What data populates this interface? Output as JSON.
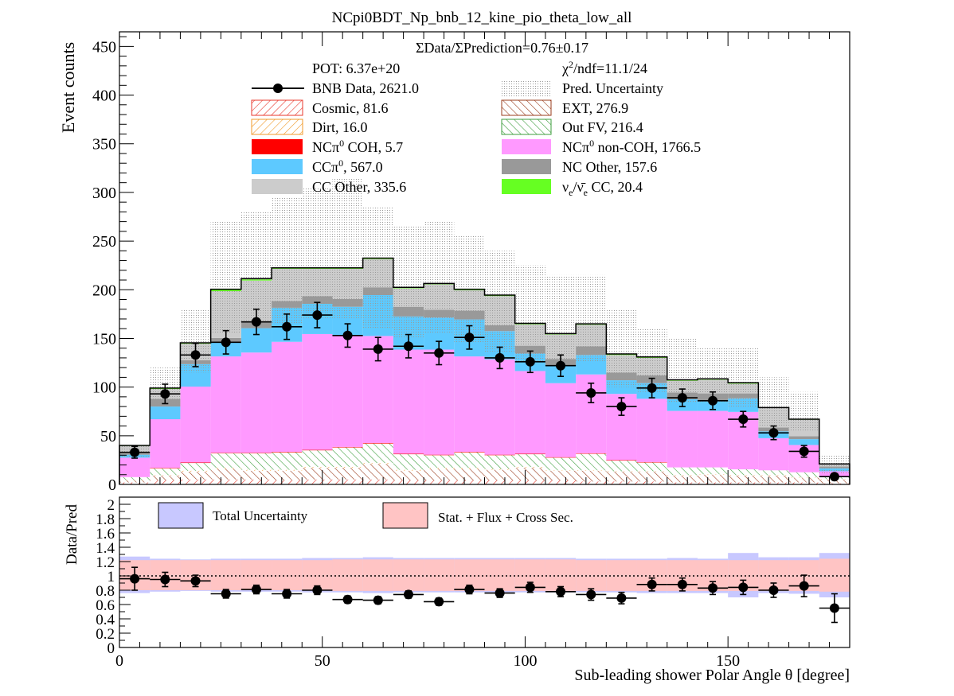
{
  "chart_data": {
    "type": "bar",
    "title": "NCpi0BDT_Np_bnb_12_kine_pio_theta_low_all",
    "xlabel": "Sub-leading shower Polar Angle θ [degree]",
    "ylabel": "Event counts",
    "ratio_ylabel": "Data/Pred",
    "xlim": [
      0,
      180
    ],
    "ylim": [
      0,
      465
    ],
    "ratio_ylim": [
      0,
      2.1
    ],
    "x_ticks": [
      0,
      50,
      100,
      150
    ],
    "y_ticks": [
      0,
      50,
      100,
      150,
      200,
      250,
      300,
      350,
      400,
      450
    ],
    "ratio_ticks": [
      "0",
      "0.2",
      "0.4",
      "0.6",
      "0.8",
      "1",
      "1.2",
      "1.4",
      "1.6",
      "1.8",
      "2"
    ],
    "ratio_tick_values": [
      0,
      0.2,
      0.4,
      0.6,
      0.8,
      1.0,
      1.2,
      1.4,
      1.6,
      1.8,
      2.0
    ],
    "bin_edges": [
      0,
      7.5,
      15,
      22.5,
      30,
      37.5,
      45,
      52.5,
      60,
      67.5,
      75,
      82.5,
      90,
      97.5,
      105,
      112.5,
      120,
      127.5,
      135,
      142.5,
      150,
      157.5,
      165,
      172.5,
      180
    ],
    "annotations": {
      "ratio_text": "ΣData/ΣPrediction=0.76±0.17",
      "pot": "POT: 6.37e+20",
      "chi2_pre": "χ",
      "chi2_sup": "2",
      "chi2_post": "/ndf=11.1/24"
    },
    "legend": {
      "data": "BNB Data, 2621.0",
      "pred_unc": "Pred. Uncertainty",
      "cosmic": "Cosmic, 81.6",
      "ext": "EXT, 276.9",
      "dirt": "Dirt, 16.0",
      "outfv": "Out FV, 216.4",
      "nccoh_a": "NCπ",
      "nccoh_sup": "0",
      "nccoh_b": " COH,  5.7",
      "ncnoncoh_a": "NCπ",
      "ncnoncoh_sup": "0",
      "ncnoncoh_b": " non-COH,  1766.5",
      "ccpi0_a": "CCπ",
      "ccpi0_sup": "0",
      "ccpi0_b": ", 567.0",
      "ncother": "NC Other, 157.6",
      "ccother": "CC Other, 335.6",
      "nue_a": "ν",
      "nue_sub": "e",
      "nue_b": "/ν̄",
      "nue_sub2": "e",
      "nue_c": " CC, 20.4",
      "total_unc": "Total Uncertainty",
      "stat_unc": "Stat. + Flux + Cross Sec."
    },
    "colors": {
      "cosmic": "#e8372b",
      "ext": "#9a3c1c",
      "dirt": "#f09a2a",
      "outfv": "#3e9e3e",
      "nccoh": "#ff0000",
      "ncnoncoh": "#ff99ff",
      "ccpi0": "#5dc9ff",
      "ncother": "#999999",
      "ccother": "#cccccc",
      "nue": "#66ff22",
      "total_unc": "#c8c8ff",
      "stat_unc": "#ffc4c4"
    },
    "series": {
      "cosmic": [
        2,
        4,
        5,
        5,
        5,
        4,
        5,
        5,
        5,
        4,
        4,
        4,
        4,
        4,
        4,
        3,
        3,
        3,
        2,
        2,
        2,
        2,
        2,
        1
      ],
      "ext": [
        2,
        5,
        8,
        11,
        9,
        10,
        12,
        12,
        16,
        10,
        12,
        12,
        11,
        13,
        10,
        11,
        10,
        10,
        7,
        8,
        7,
        7,
        5,
        4
      ],
      "dirt": [
        0.5,
        0.5,
        1,
        1,
        1,
        1,
        1,
        1,
        1,
        1,
        1,
        1,
        1,
        1,
        0.5,
        0.5,
        0.5,
        0.5,
        0.5,
        0.5,
        0.5,
        0.5,
        0.5,
        0.5
      ],
      "outfv": [
        3,
        7,
        8,
        15,
        17,
        18,
        17,
        20,
        20,
        16,
        13,
        16,
        14,
        13,
        13,
        17,
        11,
        9,
        8,
        7,
        6,
        5,
        5,
        3
      ],
      "nccoh": [
        0,
        0.5,
        0.5,
        0.5,
        0.5,
        0.5,
        0.5,
        0.5,
        0.5,
        0.5,
        0.5,
        0.5,
        0.5,
        0.5,
        0.5,
        0.5,
        0.5,
        0.5,
        0,
        0,
        0,
        0,
        0,
        0
      ],
      "ncnoncoh": [
        20,
        50,
        78,
        99,
        103,
        113,
        119,
        114,
        110,
        107,
        108,
        98,
        98,
        85,
        76,
        81,
        68,
        65,
        58,
        58,
        59,
        33,
        28,
        5
      ],
      "ccpi0": [
        3,
        13,
        23,
        14,
        25,
        35,
        31,
        30,
        42,
        34,
        33,
        38,
        29,
        18,
        18,
        20,
        14,
        16,
        12,
        11,
        14,
        7,
        6,
        3
      ],
      "ncother": [
        2,
        8,
        4,
        5,
        7,
        7,
        8,
        8,
        8,
        10,
        8,
        9,
        6,
        8,
        7,
        9,
        8,
        8,
        7,
        7,
        5,
        4,
        3,
        2
      ],
      "ccother": [
        7,
        10,
        17,
        48,
        42,
        33,
        28,
        31,
        29,
        19,
        26,
        21,
        30,
        22,
        25,
        22,
        18,
        18,
        12,
        14,
        10,
        20,
        17,
        2
      ],
      "nue": [
        0.5,
        1,
        1,
        2,
        2,
        1,
        1,
        1,
        1,
        1,
        1,
        1,
        1,
        1,
        1,
        1,
        1,
        1,
        1,
        1,
        1,
        0.5,
        0.5,
        0.5
      ]
    },
    "pred_unc_top": [
      40,
      120,
      180,
      270,
      280,
      295,
      305,
      315,
      285,
      265,
      270,
      255,
      240,
      225,
      215,
      215,
      180,
      160,
      150,
      140,
      140,
      110,
      95,
      30
    ],
    "pred_unc_low": [
      28,
      80,
      115,
      155,
      160,
      165,
      170,
      170,
      160,
      150,
      155,
      145,
      135,
      125,
      120,
      125,
      100,
      95,
      85,
      85,
      80,
      60,
      55,
      10
    ],
    "data": {
      "x": [
        3.75,
        11.25,
        18.75,
        26.25,
        33.75,
        41.25,
        48.75,
        56.25,
        63.75,
        71.25,
        78.75,
        86.25,
        93.75,
        101.25,
        108.75,
        116.25,
        123.75,
        131.25,
        138.75,
        146.25,
        153.75,
        161.25,
        168.75,
        176.25
      ],
      "y": [
        33,
        93,
        133,
        146,
        167,
        162,
        174,
        153,
        139,
        142,
        135,
        151,
        130,
        126,
        122,
        94,
        80,
        99,
        89,
        86,
        67,
        53,
        34,
        8
      ],
      "err": [
        6,
        10,
        12,
        12,
        13,
        13,
        13,
        12,
        12,
        12,
        12,
        12,
        11,
        11,
        11,
        10,
        9,
        10,
        9,
        9,
        8,
        7,
        6,
        3
      ]
    },
    "ratio": {
      "y": [
        0.96,
        0.95,
        0.93,
        0.75,
        0.81,
        0.75,
        0.8,
        0.67,
        0.66,
        0.74,
        0.64,
        0.81,
        0.76,
        0.84,
        0.78,
        0.74,
        0.69,
        0.88,
        0.88,
        0.83,
        0.84,
        0.8,
        0.86,
        0.55
      ],
      "err": [
        0.16,
        0.1,
        0.08,
        0.06,
        0.06,
        0.06,
        0.06,
        0.05,
        0.05,
        0.05,
        0.05,
        0.06,
        0.06,
        0.07,
        0.07,
        0.08,
        0.08,
        0.09,
        0.09,
        0.09,
        0.1,
        0.1,
        0.15,
        0.2
      ],
      "total_unc_hi": [
        1.27,
        1.24,
        1.23,
        1.24,
        1.24,
        1.24,
        1.25,
        1.25,
        1.26,
        1.25,
        1.25,
        1.25,
        1.25,
        1.25,
        1.25,
        1.24,
        1.24,
        1.24,
        1.25,
        1.24,
        1.32,
        1.26,
        1.26,
        1.32
      ],
      "total_unc_lo": [
        0.76,
        0.78,
        0.79,
        0.78,
        0.78,
        0.78,
        0.77,
        0.77,
        0.76,
        0.77,
        0.77,
        0.77,
        0.77,
        0.77,
        0.77,
        0.77,
        0.77,
        0.76,
        0.76,
        0.76,
        0.7,
        0.76,
        0.75,
        0.7
      ],
      "stat_unc_hi": [
        1.22,
        1.22,
        1.22,
        1.22,
        1.22,
        1.22,
        1.22,
        1.23,
        1.23,
        1.23,
        1.23,
        1.23,
        1.23,
        1.23,
        1.23,
        1.22,
        1.22,
        1.22,
        1.22,
        1.22,
        1.22,
        1.22,
        1.22,
        1.24
      ],
      "stat_unc_lo": [
        0.8,
        0.8,
        0.8,
        0.8,
        0.8,
        0.8,
        0.8,
        0.79,
        0.79,
        0.79,
        0.79,
        0.79,
        0.79,
        0.79,
        0.79,
        0.79,
        0.79,
        0.79,
        0.79,
        0.79,
        0.79,
        0.79,
        0.79,
        0.78
      ]
    }
  }
}
